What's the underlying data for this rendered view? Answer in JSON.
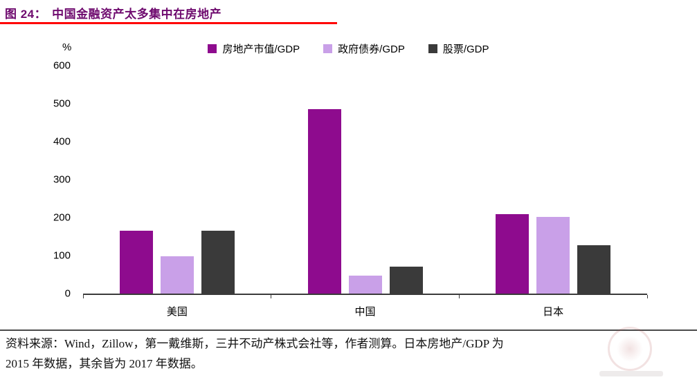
{
  "title": {
    "prefix": "图 24：",
    "text": "中国金融资产太多集中在房地产"
  },
  "chart_data": {
    "type": "bar",
    "title": "图 24：中国金融资产太多集中在房地产",
    "categories": [
      "美国",
      "中国",
      "日本"
    ],
    "series": [
      {
        "name": "房地产市值/GDP",
        "color": "#8e0b8e",
        "values": [
          165,
          485,
          210
        ]
      },
      {
        "name": "政府债券/GDP",
        "color": "#c9a0e8",
        "values": [
          98,
          47,
          201
        ]
      },
      {
        "name": "股票/GDP",
        "color": "#3a3a3a",
        "values": [
          165,
          71,
          128
        ]
      }
    ],
    "ylabel": "%",
    "ylim": [
      0,
      600
    ],
    "yticks": [
      0,
      100,
      200,
      300,
      400,
      500,
      600
    ],
    "grid": false,
    "legend_position": "top-center"
  },
  "footer": {
    "line1": "资料来源：Wind，Zillow，第一戴维斯，三井不动产株式会社等，作者测算。日本房地产/GDP 为",
    "line2": "2015 年数据，其余皆为 2017 年数据。"
  },
  "colors": {
    "title": "#6e0a6e",
    "title_rule": "#ff0000",
    "axis": "#3a3a3a"
  }
}
